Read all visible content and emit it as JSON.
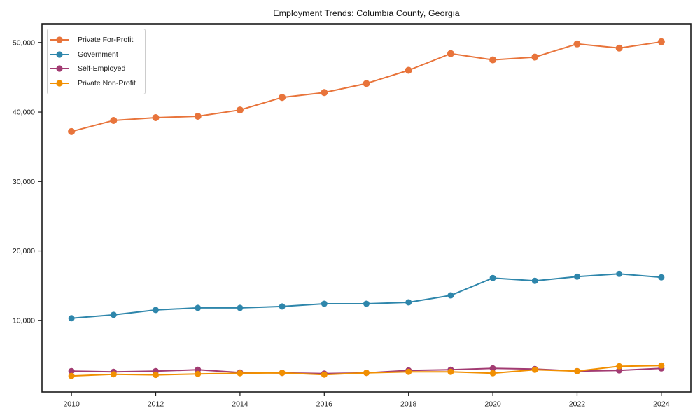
{
  "figure": {
    "background": "#ffffff",
    "axis_color": "#1a1a1a"
  },
  "chart_data": {
    "type": "line",
    "title": "Employment Trends: Columbia County, Georgia",
    "x": [
      2010,
      2011,
      2012,
      2013,
      2014,
      2015,
      2016,
      2017,
      2018,
      2019,
      2020,
      2021,
      2022,
      2023,
      2024
    ],
    "series": [
      {
        "name": "Private For-Profit",
        "color": "#E8743B",
        "marker_radius": 5,
        "values": [
          37200,
          38800,
          39200,
          39400,
          40300,
          42100,
          42800,
          44100,
          46000,
          48400,
          47500,
          47900,
          49800,
          49200,
          50100
        ]
      },
      {
        "name": "Government",
        "color": "#2E86AB",
        "marker_radius": 4.5,
        "values": [
          10300,
          10800,
          11500,
          11800,
          11800,
          12000,
          12400,
          12400,
          12600,
          13600,
          16100,
          15700,
          16300,
          16700,
          16200
        ]
      },
      {
        "name": "Self-Employed",
        "color": "#A23B72",
        "marker_radius": 4.5,
        "values": [
          2700,
          2600,
          2700,
          2900,
          2500,
          2450,
          2350,
          2450,
          2800,
          2900,
          3100,
          3000,
          2700,
          2800,
          3100
        ]
      },
      {
        "name": "Private Non-Profit",
        "color": "#F18F01",
        "marker_radius": 4.5,
        "values": [
          2000,
          2250,
          2150,
          2300,
          2400,
          2450,
          2200,
          2450,
          2600,
          2600,
          2400,
          2900,
          2700,
          3400,
          3500
        ]
      }
    ],
    "xlim": [
      2009.3,
      2024.7
    ],
    "ylim": [
      -300,
      52700
    ],
    "x_ticks": {
      "values": [
        2010,
        2012,
        2014,
        2016,
        2018,
        2020,
        2022,
        2024
      ],
      "labels": [
        "2010",
        "2012",
        "2014",
        "2016",
        "2018",
        "2020",
        "2022",
        "2024"
      ]
    },
    "y_ticks": {
      "values": [
        10000,
        20000,
        30000,
        40000,
        50000
      ],
      "labels": [
        "10,000",
        "20,000",
        "30,000",
        "40,000",
        "50,000"
      ]
    },
    "legend_position": "upper-left",
    "grid": false
  }
}
